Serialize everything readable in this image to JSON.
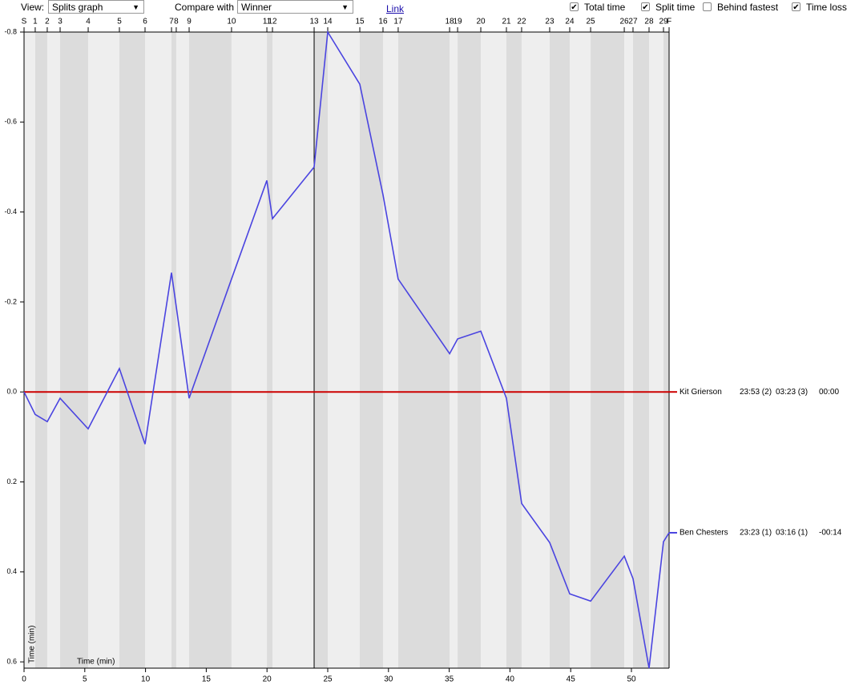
{
  "toolbar": {
    "view_label": "View:",
    "view_value": "Splits graph",
    "compare_label": "Compare with",
    "compare_value": "Winner",
    "link": "Link",
    "checkboxes": [
      {
        "label": "Total time",
        "checked": true
      },
      {
        "label": "Split time",
        "checked": true
      },
      {
        "label": "Behind fastest",
        "checked": false
      },
      {
        "label": "Time loss",
        "checked": true
      }
    ]
  },
  "chart_data": {
    "type": "line",
    "controls": [
      "S",
      "1",
      "2",
      "3",
      "4",
      "5",
      "6",
      "7",
      "8",
      "9",
      "10",
      "11",
      "12",
      "13",
      "14",
      "15",
      "16",
      "17",
      "18",
      "19",
      "20",
      "21",
      "22",
      "23",
      "24",
      "25",
      "26",
      "27",
      "28",
      "29",
      "F"
    ],
    "x": [
      0,
      0.92,
      1.91,
      2.97,
      5.28,
      7.85,
      9.96,
      12.14,
      12.53,
      13.59,
      17.08,
      19.99,
      20.45,
      23.88,
      25.0,
      27.64,
      29.55,
      30.8,
      35.03,
      35.69,
      37.6,
      39.71,
      40.96,
      43.27,
      44.92,
      46.64,
      49.41,
      50.13,
      51.45,
      52.64,
      53.1
    ],
    "xlim": [
      0,
      53.1
    ],
    "xticks": [
      0,
      5,
      10,
      15,
      20,
      25,
      30,
      35,
      40,
      45,
      50
    ],
    "xlabel": "Time (min)",
    "ylim": [
      -0.8,
      0.614
    ],
    "yticks": [
      -0.8,
      -0.6,
      -0.4,
      -0.2,
      {
        "value": 0,
        "label": "0.0"
      },
      0.2,
      0.4,
      0.6
    ],
    "ylabel": "Time (min)",
    "series": [
      {
        "name": "Kit Grierson",
        "color": "#cc0000",
        "total": "23:53 (2)",
        "split": "03:23 (3)",
        "loss": "00:00",
        "values": [
          0,
          0,
          0,
          0,
          0,
          0,
          0,
          0,
          0,
          0,
          0,
          0,
          0,
          0,
          0,
          0,
          0,
          0,
          0,
          0,
          0,
          0,
          0,
          0,
          0,
          0,
          0,
          0,
          0,
          0,
          0
        ]
      },
      {
        "name": "Ben Chesters",
        "color": "#4a44e0",
        "total": "23:23 (1)",
        "split": "03:16 (1)",
        "loss": "-00:14",
        "values": [
          0,
          0.05,
          0.066,
          0.014,
          0.082,
          -0.052,
          0.116,
          -0.265,
          -0.189,
          0.014,
          -0.251,
          -0.47,
          -0.385,
          -0.5,
          -0.8,
          -0.684,
          -0.438,
          -0.251,
          -0.085,
          -0.118,
          -0.135,
          0.014,
          0.248,
          0.335,
          0.449,
          0.465,
          0.365,
          0.415,
          0.614,
          0.333,
          0.313
        ]
      }
    ]
  }
}
